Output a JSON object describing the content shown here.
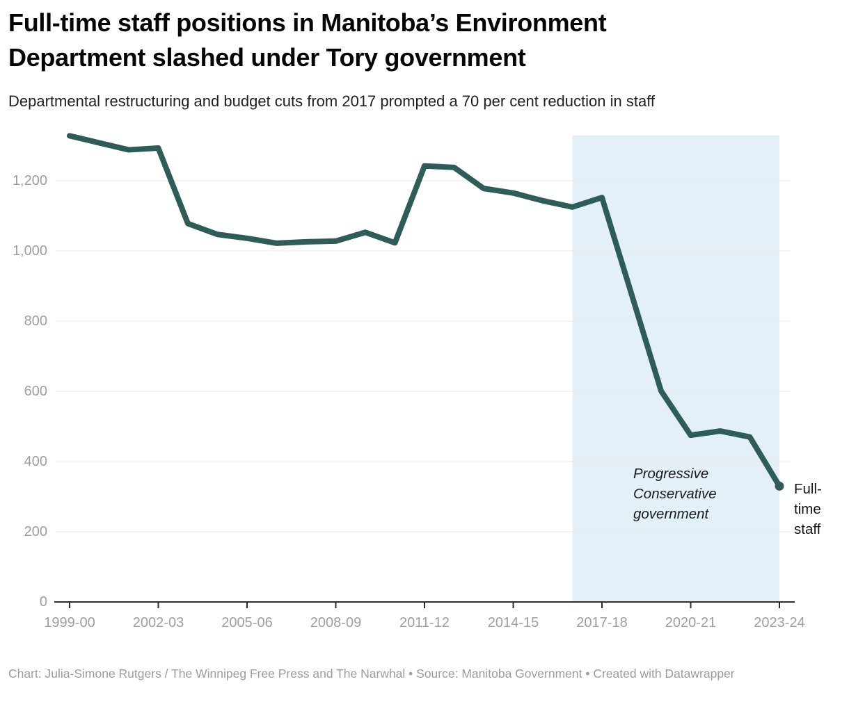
{
  "header": {
    "title": "Full-time staff positions in Manitoba’s Environment Department slashed under Tory government",
    "subtitle": "Departmental restructuring and budget cuts from 2017 prompted a 70 per cent reduction in staff"
  },
  "chart_data": {
    "type": "line",
    "title": "Full-time staff positions in Manitoba’s Environment Department slashed under Tory government",
    "subtitle": "Departmental restructuring and budget cuts from 2017 prompted a 70 per cent reduction in staff",
    "x": [
      "1999-00",
      "2000-01",
      "2001-02",
      "2002-03",
      "2003-04",
      "2004-05",
      "2005-06",
      "2006-07",
      "2007-08",
      "2008-09",
      "2009-10",
      "2010-11",
      "2011-12",
      "2012-13",
      "2013-14",
      "2014-15",
      "2015-16",
      "2016-17",
      "2017-18",
      "2018-19",
      "2019-20",
      "2020-21",
      "2021-22",
      "2022-23",
      "2023-24"
    ],
    "series": [
      {
        "name": "Full-time staff",
        "values": [
          1328,
          1308,
          1288,
          1293,
          1078,
          1047,
          1036,
          1022,
          1026,
          1028,
          1053,
          1023,
          1242,
          1238,
          1178,
          1165,
          1143,
          1125,
          1152,
          877,
          601,
          475,
          487,
          470,
          330
        ]
      }
    ],
    "x_tick_labels": [
      "1999-00",
      "2002-03",
      "2005-06",
      "2008-09",
      "2011-12",
      "2014-15",
      "2017-18",
      "2020-21",
      "2023-24"
    ],
    "y_ticks": [
      0,
      200,
      400,
      600,
      800,
      1000,
      1200
    ],
    "y_tick_labels": [
      "0",
      "200",
      "400",
      "600",
      "800",
      "1,000",
      "1,200"
    ],
    "ylim": [
      0,
      1340
    ],
    "grid": "horizontal",
    "legend_position": "none",
    "highlight_range": {
      "from": "2016-17",
      "to": "2023-24",
      "label": "Progressive Conservative government",
      "color": "#e4f0f7"
    },
    "line_color": "#2d5c59",
    "axis_color": "#2d2d2d",
    "gridline_color": "#e8e8e8",
    "tick_label_color": "#9e9e9e"
  },
  "footer": {
    "text": "Chart: Julia-Simone Rutgers / The Winnipeg Free Press and The Narwhal • Source: Manitoba Government • Created with Datawrapper"
  }
}
